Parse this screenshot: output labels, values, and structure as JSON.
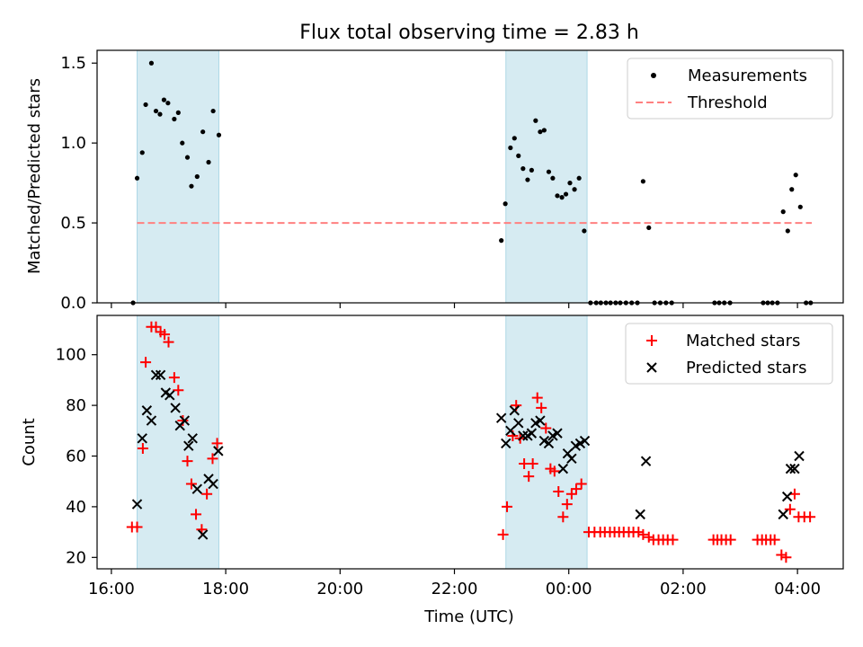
{
  "chart_data": [
    {
      "type": "scatter",
      "title": "Flux total observing time = 2.83 h",
      "xlabel": "",
      "ylabel": "Matched/Predicted stars",
      "x_unit": "hours since 00:00 UTC (times after midnight > 24)",
      "xlim": [
        15.75,
        28.8
      ],
      "ylim": [
        0,
        1.58
      ],
      "yticks": [
        0.0,
        0.5,
        1.0,
        1.5
      ],
      "ytick_labels": [
        "0.0",
        "0.5",
        "1.0",
        "1.5"
      ],
      "shaded_intervals": [
        [
          16.45,
          17.88
        ],
        [
          22.9,
          24.32
        ]
      ],
      "threshold": {
        "label": "Threshold",
        "value": 0.5,
        "x_range": [
          16.45,
          28.25
        ],
        "color": "#ff8080"
      },
      "legend": {
        "position": "top-right",
        "entries": [
          "Measurements",
          "Threshold"
        ]
      },
      "series": [
        {
          "name": "Measurements",
          "color": "#000000",
          "marker": "dot",
          "points": [
            [
              16.38,
              0.0
            ],
            [
              16.45,
              0.78
            ],
            [
              16.54,
              0.94
            ],
            [
              16.6,
              1.24
            ],
            [
              16.7,
              1.5
            ],
            [
              16.78,
              1.2
            ],
            [
              16.85,
              1.18
            ],
            [
              16.92,
              1.27
            ],
            [
              16.99,
              1.25
            ],
            [
              17.1,
              1.15
            ],
            [
              17.17,
              1.19
            ],
            [
              17.24,
              1.0
            ],
            [
              17.33,
              0.91
            ],
            [
              17.4,
              0.73
            ],
            [
              17.5,
              0.79
            ],
            [
              17.6,
              1.07
            ],
            [
              17.7,
              0.88
            ],
            [
              17.78,
              1.2
            ],
            [
              17.88,
              1.05
            ],
            [
              22.82,
              0.39
            ],
            [
              22.89,
              0.62
            ],
            [
              22.98,
              0.97
            ],
            [
              23.05,
              1.03
            ],
            [
              23.12,
              0.92
            ],
            [
              23.2,
              0.84
            ],
            [
              23.28,
              0.77
            ],
            [
              23.35,
              0.83
            ],
            [
              23.42,
              1.14
            ],
            [
              23.5,
              1.07
            ],
            [
              23.57,
              1.08
            ],
            [
              23.65,
              0.82
            ],
            [
              23.72,
              0.78
            ],
            [
              23.8,
              0.67
            ],
            [
              23.88,
              0.66
            ],
            [
              23.95,
              0.68
            ],
            [
              24.02,
              0.75
            ],
            [
              24.1,
              0.71
            ],
            [
              24.18,
              0.78
            ],
            [
              24.27,
              0.45
            ],
            [
              24.38,
              0.0
            ],
            [
              24.48,
              0.0
            ],
            [
              24.56,
              0.0
            ],
            [
              24.65,
              0.0
            ],
            [
              24.73,
              0.0
            ],
            [
              24.82,
              0.0
            ],
            [
              24.9,
              0.0
            ],
            [
              25.0,
              0.0
            ],
            [
              25.1,
              0.0
            ],
            [
              25.2,
              0.0
            ],
            [
              25.3,
              0.76
            ],
            [
              25.4,
              0.47
            ],
            [
              25.5,
              0.0
            ],
            [
              25.6,
              0.0
            ],
            [
              25.7,
              0.0
            ],
            [
              25.8,
              0.0
            ],
            [
              26.55,
              0.0
            ],
            [
              26.63,
              0.0
            ],
            [
              26.72,
              0.0
            ],
            [
              26.82,
              0.0
            ],
            [
              27.4,
              0.0
            ],
            [
              27.48,
              0.0
            ],
            [
              27.56,
              0.0
            ],
            [
              27.65,
              0.0
            ],
            [
              27.75,
              0.57
            ],
            [
              27.83,
              0.45
            ],
            [
              27.9,
              0.71
            ],
            [
              27.97,
              0.8
            ],
            [
              28.05,
              0.6
            ],
            [
              28.15,
              0.0
            ],
            [
              28.23,
              0.0
            ]
          ]
        }
      ]
    },
    {
      "type": "scatter",
      "title": "",
      "xlabel": "Time (UTC)",
      "ylabel": "Count",
      "xlim": [
        15.75,
        28.8
      ],
      "ylim": [
        15.5,
        115.5
      ],
      "yticks": [
        20,
        40,
        60,
        80,
        100
      ],
      "ytick_labels": [
        "20",
        "40",
        "60",
        "80",
        "100"
      ],
      "xticks": [
        16,
        18,
        20,
        22,
        24,
        26,
        28
      ],
      "xtick_labels": [
        "16:00",
        "18:00",
        "20:00",
        "22:00",
        "00:00",
        "02:00",
        "04:00"
      ],
      "shaded_intervals": [
        [
          16.45,
          17.88
        ],
        [
          22.9,
          24.32
        ]
      ],
      "legend": {
        "position": "top-right",
        "entries": [
          "Matched stars",
          "Predicted stars"
        ]
      },
      "series": [
        {
          "name": "Matched stars",
          "color": "#ff0000",
          "marker": "plus",
          "points": [
            [
              16.36,
              32
            ],
            [
              16.45,
              32
            ],
            [
              16.55,
              63
            ],
            [
              16.6,
              97
            ],
            [
              16.7,
              111
            ],
            [
              16.78,
              111
            ],
            [
              16.86,
              109
            ],
            [
              16.93,
              108
            ],
            [
              17.0,
              105
            ],
            [
              17.1,
              91
            ],
            [
              17.17,
              86
            ],
            [
              17.25,
              74
            ],
            [
              17.33,
              58
            ],
            [
              17.4,
              49
            ],
            [
              17.48,
              37
            ],
            [
              17.58,
              31
            ],
            [
              17.67,
              45
            ],
            [
              17.77,
              59
            ],
            [
              17.85,
              65
            ],
            [
              22.85,
              29
            ],
            [
              22.92,
              40
            ],
            [
              23.02,
              68
            ],
            [
              23.08,
              80
            ],
            [
              23.15,
              67
            ],
            [
              23.22,
              57
            ],
            [
              23.3,
              52
            ],
            [
              23.37,
              57
            ],
            [
              23.45,
              83
            ],
            [
              23.52,
              79
            ],
            [
              23.6,
              71
            ],
            [
              23.68,
              55
            ],
            [
              23.75,
              54
            ],
            [
              23.82,
              46
            ],
            [
              23.9,
              36
            ],
            [
              23.97,
              41
            ],
            [
              24.05,
              45
            ],
            [
              24.13,
              47
            ],
            [
              24.22,
              49
            ],
            [
              24.35,
              30
            ],
            [
              24.45,
              30
            ],
            [
              24.55,
              30
            ],
            [
              24.63,
              30
            ],
            [
              24.72,
              30
            ],
            [
              24.8,
              30
            ],
            [
              24.88,
              30
            ],
            [
              24.96,
              30
            ],
            [
              25.05,
              30
            ],
            [
              25.13,
              30
            ],
            [
              25.22,
              30
            ],
            [
              25.3,
              29
            ],
            [
              25.4,
              28
            ],
            [
              25.48,
              27
            ],
            [
              25.57,
              27
            ],
            [
              25.65,
              27
            ],
            [
              25.73,
              27
            ],
            [
              25.82,
              27
            ],
            [
              26.53,
              27
            ],
            [
              26.6,
              27
            ],
            [
              26.67,
              27
            ],
            [
              26.75,
              27
            ],
            [
              26.83,
              27
            ],
            [
              27.3,
              27
            ],
            [
              27.38,
              27
            ],
            [
              27.45,
              27
            ],
            [
              27.53,
              27
            ],
            [
              27.6,
              27
            ],
            [
              27.72,
              21
            ],
            [
              27.8,
              20
            ],
            [
              27.87,
              39
            ],
            [
              27.95,
              45
            ],
            [
              28.02,
              36
            ],
            [
              28.12,
              36
            ],
            [
              28.22,
              36
            ]
          ]
        },
        {
          "name": "Predicted stars",
          "color": "#000000",
          "marker": "x",
          "points": [
            [
              16.45,
              41
            ],
            [
              16.54,
              67
            ],
            [
              16.62,
              78
            ],
            [
              16.7,
              74
            ],
            [
              16.78,
              92
            ],
            [
              16.86,
              92
            ],
            [
              16.95,
              85
            ],
            [
              17.02,
              84
            ],
            [
              17.12,
              79
            ],
            [
              17.2,
              72
            ],
            [
              17.28,
              74
            ],
            [
              17.35,
              64
            ],
            [
              17.42,
              67
            ],
            [
              17.5,
              47
            ],
            [
              17.6,
              29
            ],
            [
              17.7,
              51
            ],
            [
              17.78,
              49
            ],
            [
              17.87,
              62
            ],
            [
              22.82,
              75
            ],
            [
              22.9,
              65
            ],
            [
              22.98,
              70
            ],
            [
              23.05,
              78
            ],
            [
              23.12,
              73
            ],
            [
              23.2,
              68
            ],
            [
              23.28,
              68
            ],
            [
              23.35,
              69
            ],
            [
              23.42,
              73
            ],
            [
              23.5,
              74
            ],
            [
              23.57,
              66
            ],
            [
              23.65,
              65
            ],
            [
              23.72,
              68
            ],
            [
              23.8,
              69
            ],
            [
              23.9,
              55
            ],
            [
              23.98,
              61
            ],
            [
              24.05,
              59
            ],
            [
              24.12,
              64
            ],
            [
              24.2,
              65
            ],
            [
              24.28,
              66
            ],
            [
              25.25,
              37
            ],
            [
              25.35,
              58
            ],
            [
              27.75,
              37
            ],
            [
              27.82,
              44
            ],
            [
              27.88,
              55
            ],
            [
              27.95,
              55
            ],
            [
              28.03,
              60
            ]
          ]
        }
      ]
    }
  ]
}
